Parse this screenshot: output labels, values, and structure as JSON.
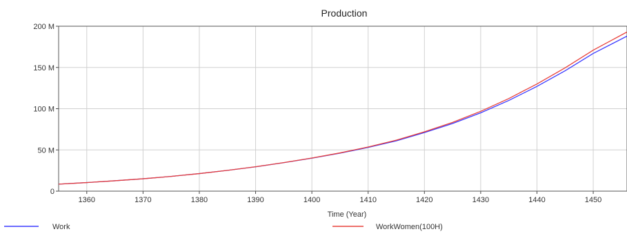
{
  "chart_data": {
    "type": "line",
    "title": "Production",
    "xlabel": "Time (Year)",
    "ylabel": "",
    "xlim": [
      1355,
      1456
    ],
    "ylim": [
      0,
      200000000
    ],
    "x_ticks": [
      1360,
      1370,
      1380,
      1390,
      1400,
      1410,
      1420,
      1430,
      1440,
      1450
    ],
    "y_ticks": [
      {
        "value": 0,
        "label": "0"
      },
      {
        "value": 50000000,
        "label": "50 M"
      },
      {
        "value": 100000000,
        "label": "100 M"
      },
      {
        "value": 150000000,
        "label": "150 M"
      },
      {
        "value": 200000000,
        "label": "200 M"
      }
    ],
    "grid": true,
    "legend_position": "bottom",
    "series": [
      {
        "name": "Work",
        "color": "#3a3aff",
        "x": [
          1355,
          1360,
          1365,
          1370,
          1375,
          1380,
          1385,
          1390,
          1395,
          1400,
          1405,
          1410,
          1415,
          1420,
          1425,
          1430,
          1435,
          1440,
          1445,
          1450,
          1456
        ],
        "values": [
          8500000,
          10400000,
          12600000,
          15000000,
          17900000,
          21300000,
          25200000,
          29500000,
          34500000,
          40000000,
          46000000,
          53000000,
          61000000,
          71000000,
          82000000,
          95000000,
          110000000,
          127000000,
          146000000,
          167000000,
          188000000
        ]
      },
      {
        "name": "WorkWomen(100H)",
        "color": "#e8403a",
        "x": [
          1355,
          1360,
          1365,
          1370,
          1375,
          1380,
          1385,
          1390,
          1395,
          1400,
          1405,
          1410,
          1415,
          1420,
          1425,
          1430,
          1435,
          1440,
          1445,
          1450,
          1456
        ],
        "values": [
          8500000,
          10400000,
          12600000,
          15000000,
          17900000,
          21300000,
          25200000,
          29600000,
          34600000,
          40200000,
          46400000,
          53600000,
          61800000,
          72000000,
          83400000,
          96800000,
          112300000,
          130000000,
          149500000,
          171000000,
          193000000
        ]
      }
    ]
  }
}
